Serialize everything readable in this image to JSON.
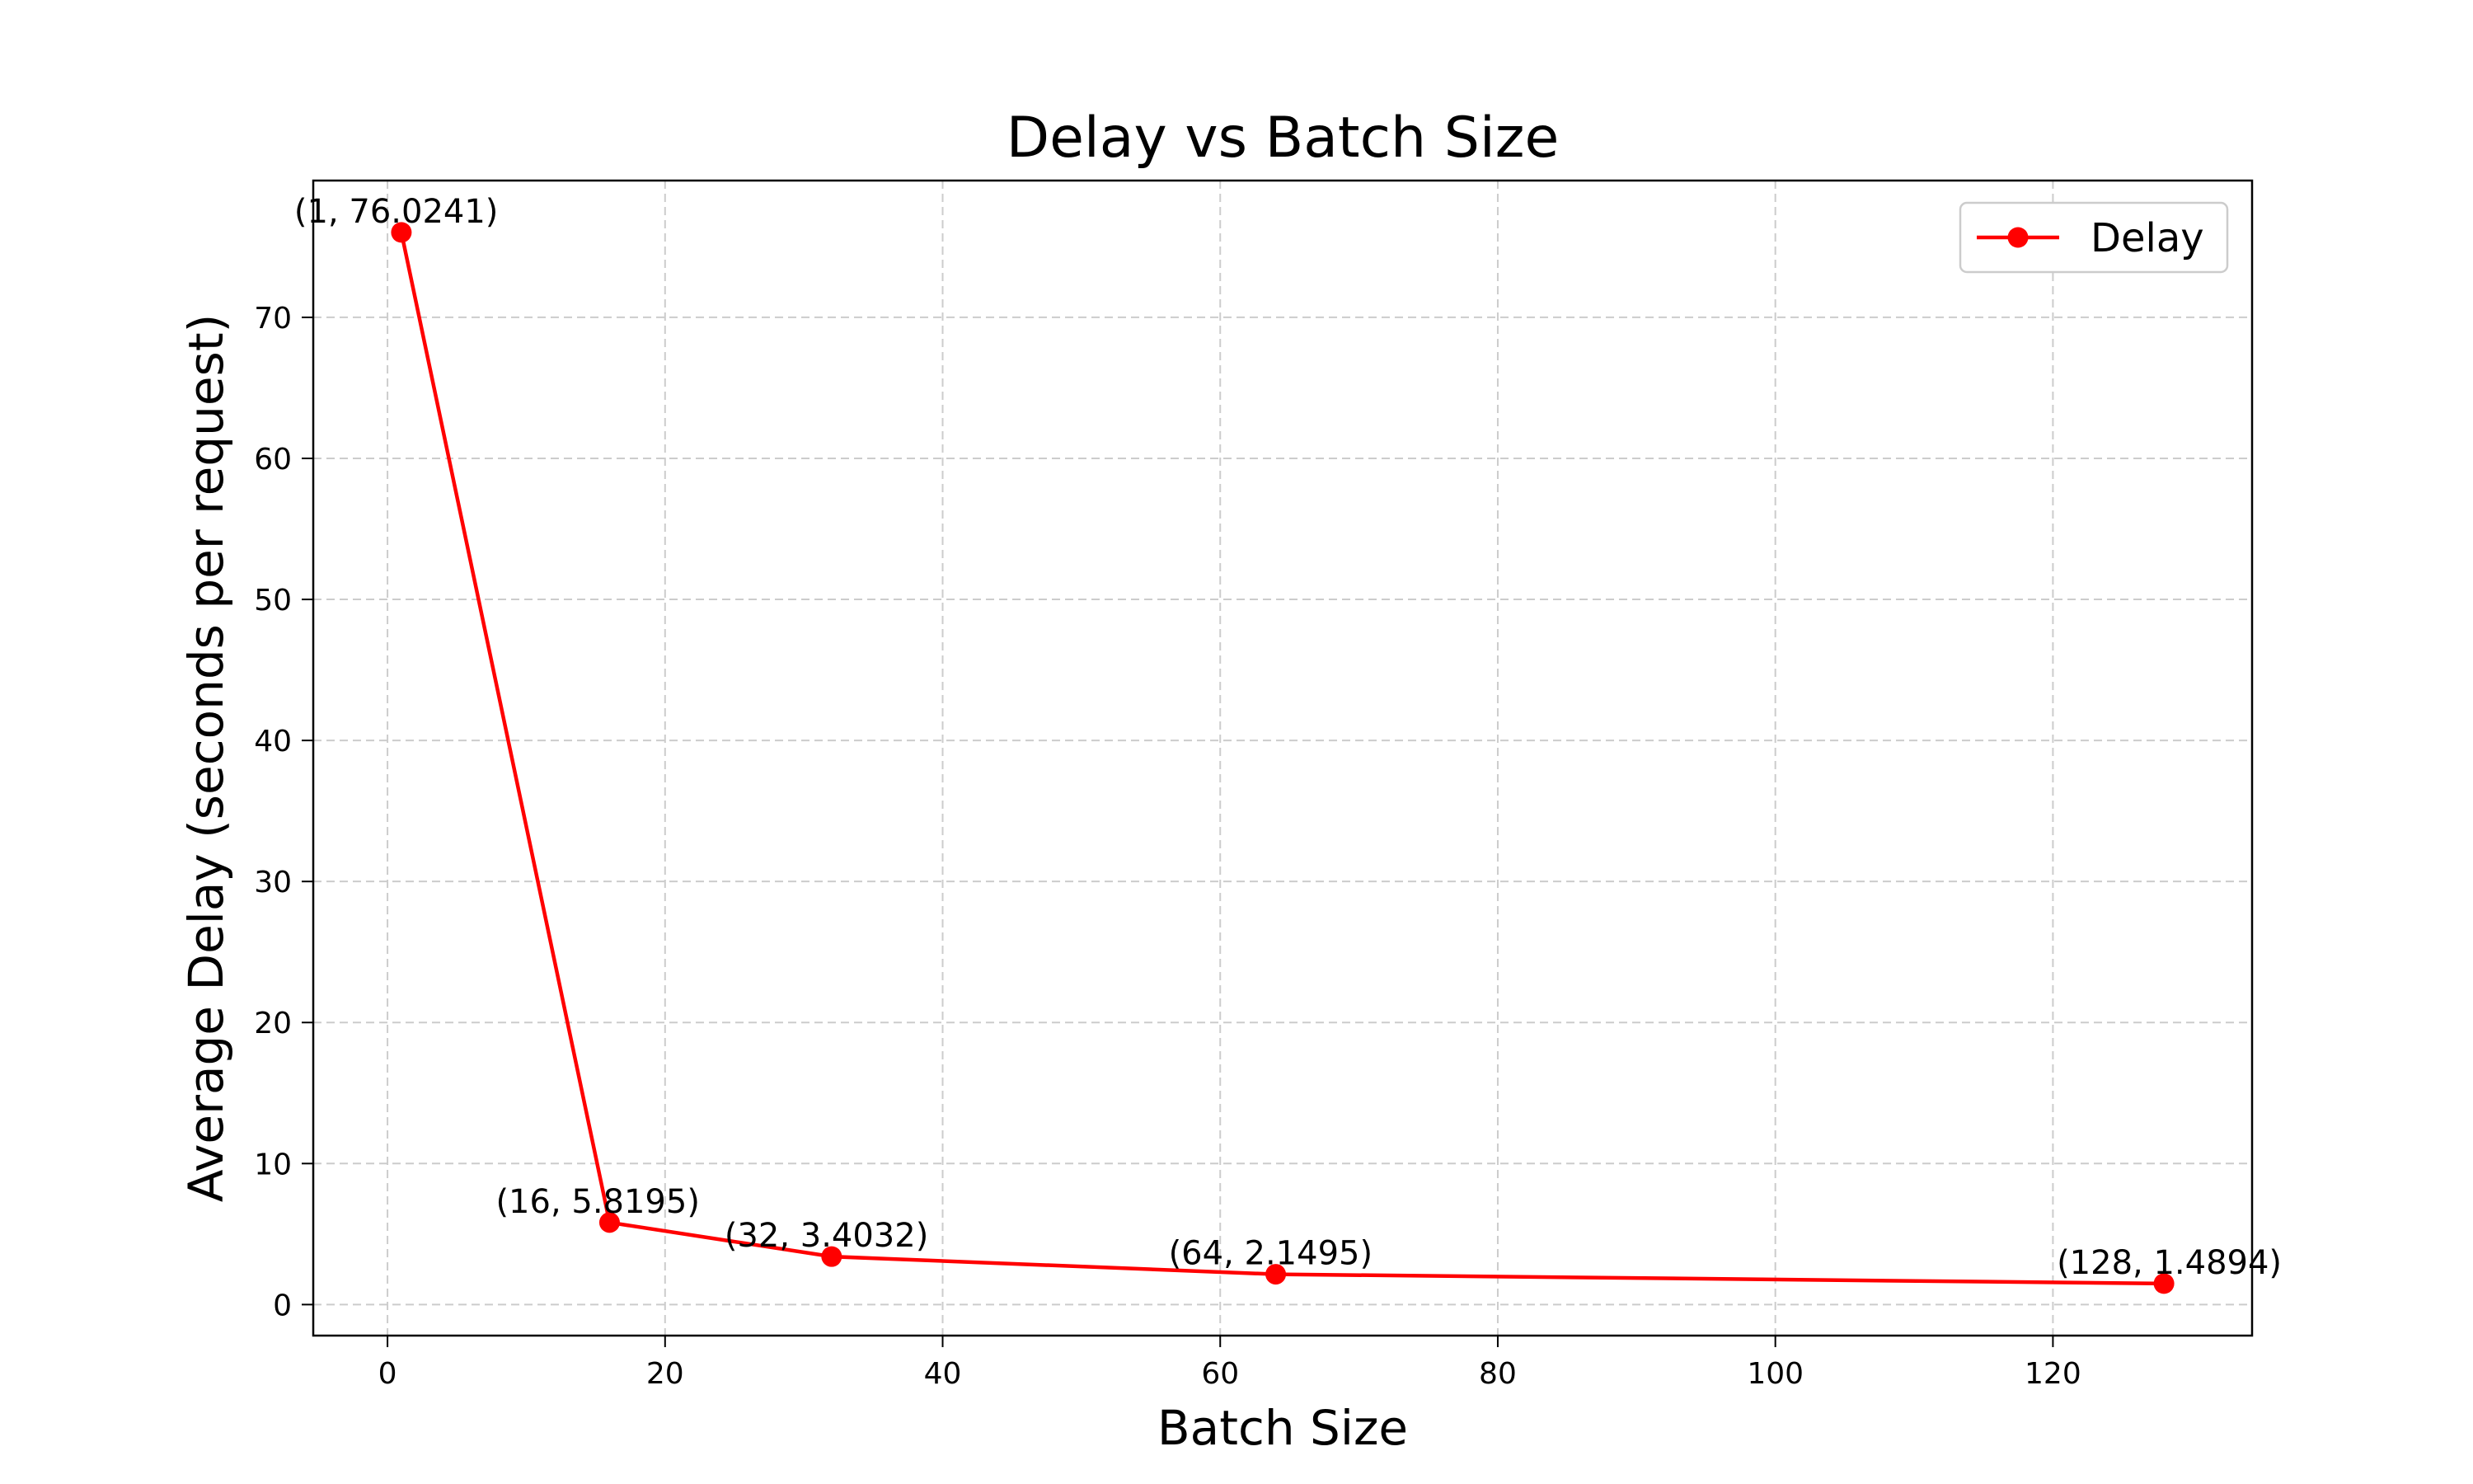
{
  "chart_data": {
    "type": "line",
    "title": "Delay vs Batch Size",
    "xlabel": "Batch Size",
    "ylabel": "Average Delay (seconds per request)",
    "xlim": [
      -5.35,
      134.35
    ],
    "ylim": [
      -2.2,
      79.7
    ],
    "xticks": [
      0,
      20,
      40,
      60,
      80,
      100,
      120
    ],
    "yticks": [
      0,
      10,
      20,
      30,
      40,
      50,
      60,
      70
    ],
    "grid": true,
    "legend_position": "top-right",
    "series": [
      {
        "name": "Delay",
        "color": "#ff0000",
        "marker": "circle",
        "x": [
          1,
          16,
          32,
          64,
          128
        ],
        "y": [
          76.0241,
          5.8195,
          3.4032,
          2.1495,
          1.4894
        ],
        "labels": [
          "(1, 76.0241)",
          "(16, 5.8195)",
          "(32, 3.4032)",
          "(64, 2.1495)",
          "(128, 1.4894)"
        ]
      }
    ]
  }
}
